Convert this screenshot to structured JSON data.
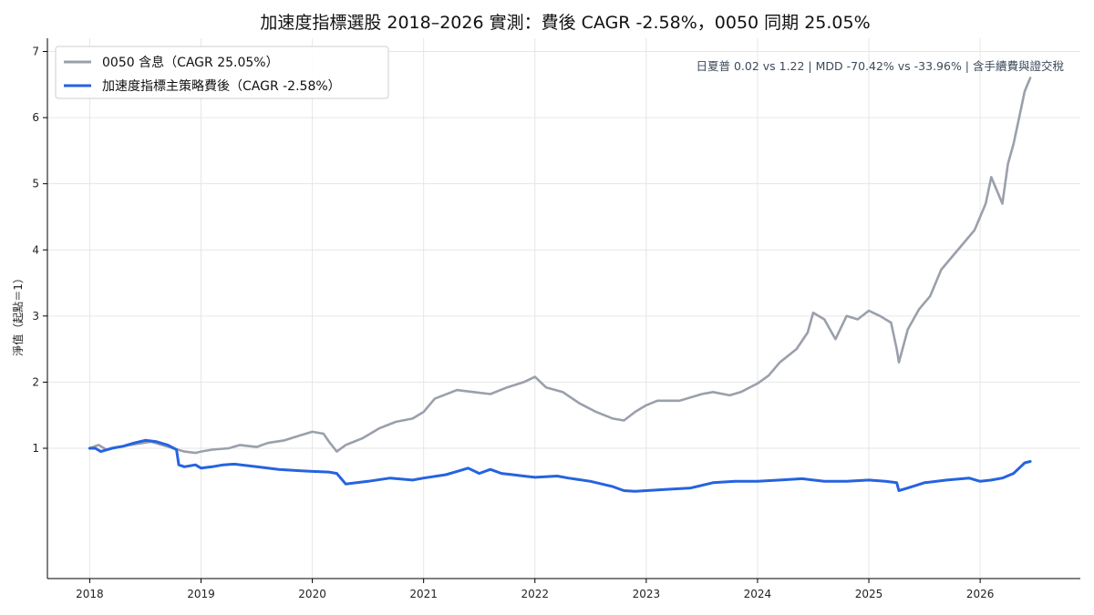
{
  "chart_data": {
    "type": "line",
    "title": "加速度指標選股 2018–2026 實測：費後 CAGR -2.58%，0050 同期 25.05%",
    "ylabel": "淨值（起點＝1）",
    "xlabel": "",
    "annotation": "日夏普 0.02 vs 1.22 | MDD -70.42% vs -33.96% | 含手續費與證交稅",
    "xlim": [
      2017.62,
      2026.9
    ],
    "ylim": [
      -0.97,
      7.2
    ],
    "x_ticks": [
      2018,
      2019,
      2020,
      2021,
      2022,
      2023,
      2024,
      2025,
      2026
    ],
    "x_tick_labels": [
      "2018",
      "2019",
      "2020",
      "2021",
      "2022",
      "2023",
      "2024",
      "2025",
      "2026"
    ],
    "y_ticks": [
      1,
      2,
      3,
      4,
      5,
      6,
      7
    ],
    "y_tick_labels": [
      "1",
      "2",
      "3",
      "4",
      "5",
      "6",
      "7"
    ],
    "grid": true,
    "legend_position": "top-left",
    "series": [
      {
        "name": "0050 含息（CAGR 25.05%）",
        "color": "#9aa0ab",
        "x": [
          2018.0,
          2018.08,
          2018.15,
          2018.25,
          2018.4,
          2018.55,
          2018.65,
          2018.75,
          2018.85,
          2018.95,
          2019.0,
          2019.1,
          2019.25,
          2019.35,
          2019.5,
          2019.6,
          2019.75,
          2019.9,
          2020.0,
          2020.1,
          2020.15,
          2020.22,
          2020.3,
          2020.45,
          2020.6,
          2020.75,
          2020.9,
          2021.0,
          2021.1,
          2021.3,
          2021.45,
          2021.6,
          2021.75,
          2021.9,
          2022.0,
          2022.1,
          2022.25,
          2022.4,
          2022.55,
          2022.7,
          2022.8,
          2022.9,
          2023.0,
          2023.1,
          2023.3,
          2023.5,
          2023.6,
          2023.75,
          2023.85,
          2024.0,
          2024.1,
          2024.2,
          2024.35,
          2024.45,
          2024.5,
          2024.6,
          2024.7,
          2024.8,
          2024.9,
          2025.0,
          2025.1,
          2025.2,
          2025.25,
          2025.27,
          2025.35,
          2025.45,
          2025.55,
          2025.65,
          2025.75,
          2025.85,
          2025.95,
          2026.0,
          2026.05,
          2026.1,
          2026.15,
          2026.2,
          2026.25,
          2026.3,
          2026.35,
          2026.4,
          2026.45
        ],
        "y": [
          1.0,
          1.05,
          0.98,
          1.02,
          1.06,
          1.1,
          1.05,
          1.0,
          0.95,
          0.93,
          0.95,
          0.98,
          1.0,
          1.05,
          1.02,
          1.08,
          1.12,
          1.2,
          1.25,
          1.22,
          1.1,
          0.95,
          1.05,
          1.15,
          1.3,
          1.4,
          1.45,
          1.55,
          1.75,
          1.88,
          1.85,
          1.82,
          1.92,
          2.0,
          2.08,
          1.92,
          1.85,
          1.68,
          1.55,
          1.45,
          1.42,
          1.55,
          1.65,
          1.72,
          1.72,
          1.82,
          1.85,
          1.8,
          1.85,
          1.98,
          2.1,
          2.3,
          2.5,
          2.75,
          3.05,
          2.95,
          2.65,
          3.0,
          2.95,
          3.08,
          3.0,
          2.9,
          2.5,
          2.3,
          2.8,
          3.1,
          3.3,
          3.7,
          3.9,
          4.1,
          4.3,
          4.5,
          4.7,
          5.1,
          4.9,
          4.7,
          5.3,
          5.6,
          6.0,
          6.4,
          6.6
        ]
      },
      {
        "name": "加速度指標主策略費後（CAGR -2.58%）",
        "color": "#2563e0",
        "x": [
          2018.0,
          2018.05,
          2018.1,
          2018.2,
          2018.3,
          2018.4,
          2018.5,
          2018.6,
          2018.7,
          2018.78,
          2018.8,
          2018.85,
          2018.95,
          2019.0,
          2019.1,
          2019.2,
          2019.3,
          2019.5,
          2019.7,
          2019.9,
          2020.0,
          2020.15,
          2020.22,
          2020.3,
          2020.5,
          2020.7,
          2020.9,
          2021.0,
          2021.2,
          2021.3,
          2021.4,
          2021.5,
          2021.6,
          2021.7,
          2021.8,
          2021.9,
          2022.0,
          2022.2,
          2022.3,
          2022.5,
          2022.7,
          2022.8,
          2022.9,
          2023.0,
          2023.2,
          2023.4,
          2023.6,
          2023.8,
          2024.0,
          2024.2,
          2024.4,
          2024.6,
          2024.8,
          2025.0,
          2025.15,
          2025.25,
          2025.27,
          2025.35,
          2025.5,
          2025.7,
          2025.9,
          2026.0,
          2026.1,
          2026.2,
          2026.3,
          2026.35,
          2026.4,
          2026.45
        ],
        "y": [
          1.0,
          1.0,
          0.95,
          1.0,
          1.03,
          1.08,
          1.12,
          1.1,
          1.05,
          0.98,
          0.75,
          0.72,
          0.75,
          0.7,
          0.72,
          0.75,
          0.76,
          0.72,
          0.68,
          0.66,
          0.65,
          0.64,
          0.62,
          0.46,
          0.5,
          0.55,
          0.52,
          0.55,
          0.6,
          0.65,
          0.7,
          0.62,
          0.68,
          0.62,
          0.6,
          0.58,
          0.56,
          0.58,
          0.55,
          0.5,
          0.42,
          0.36,
          0.35,
          0.36,
          0.38,
          0.4,
          0.48,
          0.5,
          0.5,
          0.52,
          0.54,
          0.5,
          0.5,
          0.52,
          0.5,
          0.48,
          0.36,
          0.4,
          0.48,
          0.52,
          0.55,
          0.5,
          0.52,
          0.55,
          0.62,
          0.7,
          0.78,
          0.8
        ]
      }
    ]
  }
}
